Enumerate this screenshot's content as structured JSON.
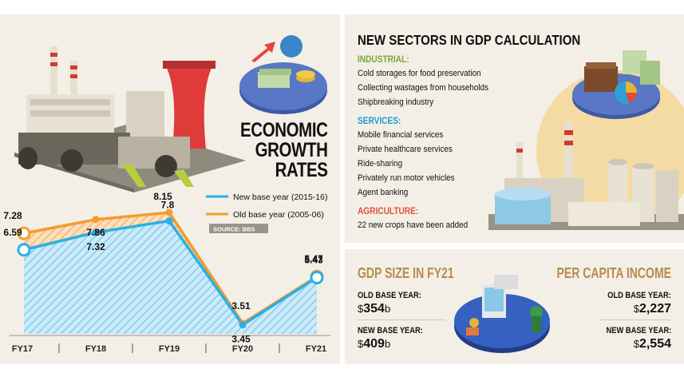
{
  "left": {
    "title": [
      "ECONOMIC",
      "GROWTH",
      "RATES"
    ],
    "source": "SOURCE: BBS"
  },
  "chart_data": {
    "type": "area",
    "title": "ECONOMIC GROWTH RATES",
    "categories": [
      "FY17",
      "FY18",
      "FY19",
      "FY20",
      "FY21"
    ],
    "series": [
      {
        "name": "New base year (2015-16)",
        "color": "#2ab0e4",
        "values": [
          6.59,
          7.32,
          7.8,
          3.45,
          5.43
        ]
      },
      {
        "name": "Old base year (2005-06)",
        "color": "#f39b2f",
        "values": [
          7.28,
          7.86,
          8.15,
          3.51,
          5.47
        ]
      }
    ],
    "value_labels": {
      "new": [
        "6.59",
        "7.32",
        "7.8",
        "3.45",
        "5.43"
      ],
      "old": [
        "7.28",
        "7.86",
        "8.15",
        "3.51",
        "5.47"
      ]
    },
    "ylim": [
      0,
      9
    ],
    "xlabel": "",
    "ylabel": "",
    "legend_placement": "top-right"
  },
  "sectors": {
    "title": "NEW SECTORS IN GDP CALCULATION",
    "industrial_heading": "INDUSTRIAL:",
    "industrial": [
      "Cold storages for food preservation",
      "Collecting wastages from households",
      "Shipbreaking industry"
    ],
    "services_heading": "SERVICES:",
    "services": [
      "Mobile financial services",
      "Private healthcare services",
      "Ride-sharing",
      "Privately run motor vehicles",
      "Agent banking"
    ],
    "agriculture_heading": "AGRICULTURE:",
    "agriculture": [
      "22 new crops have been added"
    ],
    "colors": {
      "industrial": "#7aa63a",
      "services": "#1c9ad6",
      "agriculture": "#e0523e"
    }
  },
  "gdp": {
    "title": "GDP SIZE IN FY21",
    "old_label": "OLD BASE YEAR:",
    "old_currency": "$",
    "old_value": "354",
    "old_unit": "b",
    "new_label": "NEW BASE YEAR:",
    "new_currency": "$",
    "new_value": "409",
    "new_unit": "b"
  },
  "per_capita": {
    "title": "PER CAPITA INCOME",
    "old_label": "OLD BASE YEAR:",
    "old_currency": "$",
    "old_value": "2,227",
    "new_label": "NEW BASE YEAR:",
    "new_currency": "$",
    "new_value": "2,554"
  }
}
